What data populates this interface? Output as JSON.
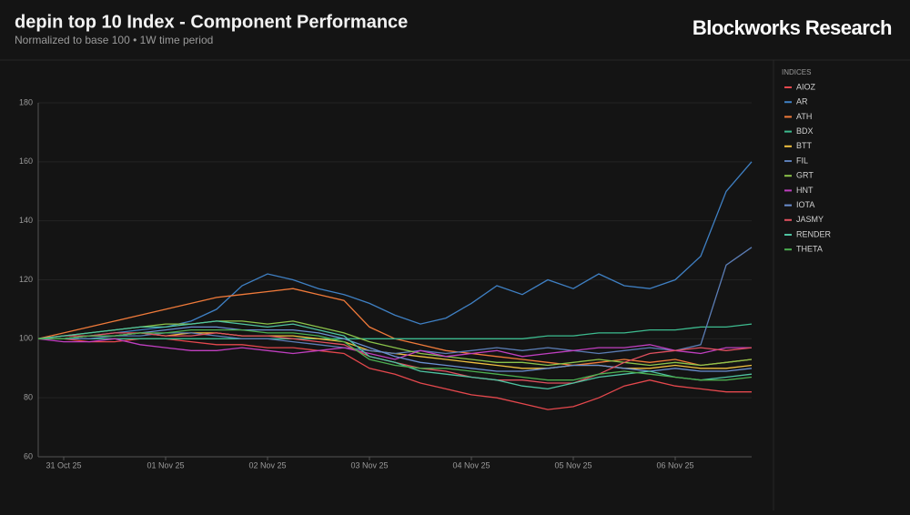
{
  "brand": "Blockworks Research",
  "chart_data": {
    "type": "line",
    "title": "depin top 10 Index - Component Performance",
    "subtitle": "Normalized to base 100 • 1W time period",
    "legend_title": "INDICES",
    "legend_position": "right",
    "grid": true,
    "categories": [
      null,
      "31 Oct 25",
      null,
      null,
      null,
      "01 Nov 25",
      null,
      null,
      null,
      "02 Nov 25",
      null,
      null,
      null,
      "03 Nov 25",
      null,
      null,
      null,
      "04 Nov 25",
      null,
      null,
      null,
      "05 Nov 25",
      null,
      null,
      null,
      "06 Nov 25",
      null,
      null,
      null
    ],
    "ylim": [
      60,
      180
    ],
    "yticks": [
      60,
      80,
      100,
      120,
      140,
      160,
      180
    ],
    "series": [
      {
        "name": "AIOZ",
        "color": "#e5484d",
        "values": [
          100,
          100,
          99,
          99,
          100,
          100,
          99,
          98,
          98,
          97,
          97,
          96,
          95,
          90,
          88,
          85,
          83,
          81,
          80,
          78,
          76,
          77,
          80,
          84,
          86,
          84,
          83,
          82,
          82
        ]
      },
      {
        "name": "AR",
        "color": "#3f80c4",
        "values": [
          100,
          100,
          101,
          102,
          103,
          104,
          106,
          110,
          118,
          122,
          120,
          117,
          115,
          112,
          108,
          105,
          107,
          112,
          118,
          115,
          120,
          117,
          122,
          118,
          117,
          120,
          128,
          150,
          160
        ]
      },
      {
        "name": "ATH",
        "color": "#f07a3a",
        "values": [
          100,
          102,
          104,
          106,
          108,
          110,
          112,
          114,
          115,
          116,
          117,
          115,
          113,
          104,
          100,
          98,
          96,
          95,
          94,
          93,
          92,
          91,
          92,
          93,
          92,
          93,
          91,
          92,
          93
        ]
      },
      {
        "name": "BDX",
        "color": "#3dbb8f",
        "values": [
          100,
          100,
          100,
          100,
          100,
          100,
          100,
          100,
          100,
          100,
          100,
          100,
          100,
          100,
          100,
          100,
          100,
          100,
          100,
          100,
          101,
          101,
          102,
          102,
          103,
          103,
          104,
          104,
          105
        ]
      },
      {
        "name": "BTT",
        "color": "#f0c040",
        "values": [
          100,
          100,
          101,
          101,
          102,
          101,
          102,
          102,
          101,
          101,
          101,
          100,
          99,
          96,
          95,
          94,
          93,
          92,
          91,
          90,
          90,
          91,
          91,
          90,
          90,
          91,
          90,
          90,
          91
        ]
      },
      {
        "name": "FIL",
        "color": "#5b7db5",
        "values": [
          100,
          100,
          100,
          101,
          101,
          102,
          102,
          101,
          100,
          100,
          99,
          98,
          97,
          96,
          95,
          96,
          95,
          96,
          97,
          96,
          97,
          96,
          95,
          96,
          97,
          96,
          98,
          125,
          131
        ]
      },
      {
        "name": "GRT",
        "color": "#8bc34a",
        "values": [
          100,
          101,
          102,
          103,
          104,
          105,
          105,
          106,
          106,
          105,
          106,
          104,
          102,
          99,
          97,
          95,
          94,
          93,
          92,
          92,
          91,
          92,
          93,
          92,
          91,
          92,
          91,
          92,
          93
        ]
      },
      {
        "name": "HNT",
        "color": "#c03fc0",
        "values": [
          100,
          99,
          99,
          100,
          98,
          97,
          96,
          96,
          97,
          96,
          95,
          96,
          97,
          95,
          93,
          96,
          94,
          95,
          96,
          94,
          95,
          96,
          97,
          97,
          98,
          96,
          95,
          97,
          97
        ]
      },
      {
        "name": "IOTA",
        "color": "#6a8fd0",
        "values": [
          100,
          100,
          101,
          101,
          102,
          103,
          104,
          104,
          103,
          103,
          103,
          102,
          100,
          97,
          94,
          92,
          91,
          90,
          89,
          89,
          90,
          91,
          91,
          90,
          89,
          90,
          89,
          89,
          90
        ]
      },
      {
        "name": "JASMY",
        "color": "#e0505f",
        "values": [
          100,
          101,
          101,
          102,
          102,
          101,
          101,
          102,
          101,
          101,
          100,
          99,
          98,
          94,
          92,
          90,
          89,
          87,
          86,
          86,
          85,
          85,
          88,
          92,
          95,
          96,
          97,
          96,
          97
        ]
      },
      {
        "name": "RENDER",
        "color": "#4fc3a1",
        "values": [
          100,
          101,
          102,
          103,
          104,
          104,
          105,
          106,
          105,
          104,
          105,
          103,
          101,
          94,
          92,
          89,
          88,
          87,
          86,
          84,
          83,
          85,
          87,
          88,
          89,
          87,
          86,
          87,
          88
        ]
      },
      {
        "name": "THETA",
        "color": "#4caf50",
        "values": [
          100,
          100,
          101,
          101,
          102,
          102,
          103,
          103,
          103,
          102,
          102,
          101,
          99,
          93,
          91,
          90,
          90,
          89,
          88,
          87,
          86,
          86,
          88,
          89,
          88,
          87,
          86,
          86,
          87
        ]
      }
    ]
  }
}
